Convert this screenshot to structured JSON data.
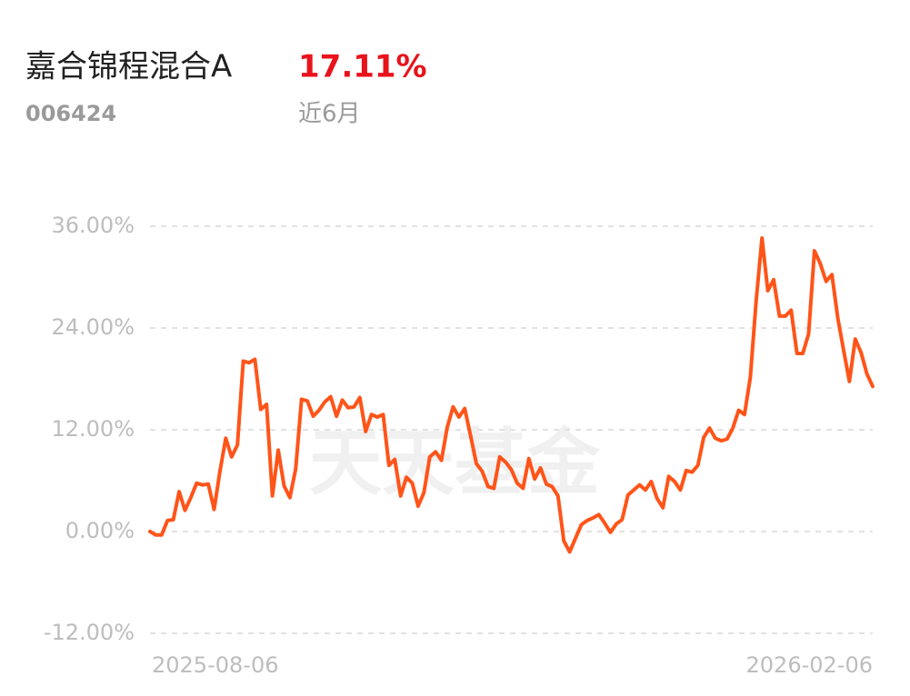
{
  "chart_data": {
    "type": "line",
    "title": "嘉合锦程混合A",
    "return_value": "17.11%",
    "fund_code": "006424",
    "period": "近6月",
    "watermark": "天天基金",
    "categories": [
      "2025-08-06",
      null,
      null,
      null,
      null,
      null,
      null,
      null,
      null,
      null,
      null,
      null,
      null,
      null,
      null,
      null,
      null,
      null,
      null,
      null,
      null,
      null,
      null,
      null,
      null,
      null,
      null,
      null,
      null,
      null,
      null,
      null,
      null,
      null,
      null,
      null,
      null,
      null,
      null,
      null,
      null,
      null,
      null,
      null,
      null,
      null,
      null,
      null,
      null,
      null,
      null,
      null,
      null,
      null,
      null,
      null,
      null,
      null,
      null,
      null,
      null,
      null,
      null,
      null,
      null,
      null,
      null,
      null,
      null,
      null,
      null,
      null,
      null,
      null,
      null,
      null,
      null,
      null,
      null,
      null,
      null,
      null,
      null,
      null,
      null,
      null,
      null,
      null,
      null,
      null,
      null,
      null,
      null,
      null,
      null,
      null,
      null,
      null,
      null,
      null,
      null,
      null,
      null,
      null,
      null,
      null,
      null,
      null,
      null,
      null,
      null,
      null,
      null,
      null,
      null,
      null,
      null,
      null,
      null,
      null,
      null,
      null,
      null,
      null,
      "2026-02-06"
    ],
    "values": [
      0,
      -0.4,
      -0.4,
      1.3,
      1.4,
      4.7,
      2.5,
      4.0,
      5.7,
      5.5,
      5.6,
      2.6,
      7.1,
      11.0,
      8.8,
      10.2,
      20.1,
      19.9,
      20.3,
      14.4,
      15.0,
      4.2,
      9.6,
      5.4,
      4.0,
      7.4,
      15.6,
      15.4,
      13.6,
      14.3,
      15.3,
      15.9,
      13.6,
      15.5,
      14.6,
      14.7,
      15.8,
      11.8,
      13.8,
      13.5,
      13.8,
      7.8,
      8.5,
      4.2,
      6.4,
      5.7,
      3.0,
      4.6,
      8.8,
      9.4,
      8.4,
      12.3,
      14.7,
      13.5,
      14.5,
      11.3,
      8.0,
      7.1,
      5.3,
      5.1,
      8.8,
      8.2,
      7.3,
      5.7,
      5.1,
      8.6,
      6.2,
      7.5,
      5.6,
      5.3,
      4.2,
      -1.1,
      -2.4,
      -0.8,
      0.8,
      1.3,
      1.6,
      2.0,
      1.0,
      -0.1,
      0.9,
      1.4,
      4.3,
      4.9,
      5.5,
      4.9,
      5.9,
      3.9,
      2.8,
      6.5,
      5.9,
      4.9,
      7.2,
      7.0,
      7.8,
      11.1,
      12.2,
      11.0,
      10.7,
      10.9,
      12.2,
      14.3,
      13.8,
      18.2,
      27.2,
      34.6,
      28.4,
      29.7,
      25.4,
      25.4,
      26.1,
      21.0,
      21.0,
      23.3,
      33.1,
      31.6,
      29.5,
      30.3,
      25.2,
      21.4,
      17.7,
      22.7,
      21.1,
      18.6,
      17.11
    ],
    "color": "#ff5419",
    "ylim": [
      -12,
      36
    ],
    "yticks": [
      {
        "value": -12,
        "label": "-12.00%"
      },
      {
        "value": 0,
        "label": "0.00%"
      },
      {
        "value": 12,
        "label": "12.00%"
      },
      {
        "value": 24,
        "label": "24.00%"
      },
      {
        "value": 36,
        "label": "36.00%"
      }
    ],
    "grid": true
  }
}
